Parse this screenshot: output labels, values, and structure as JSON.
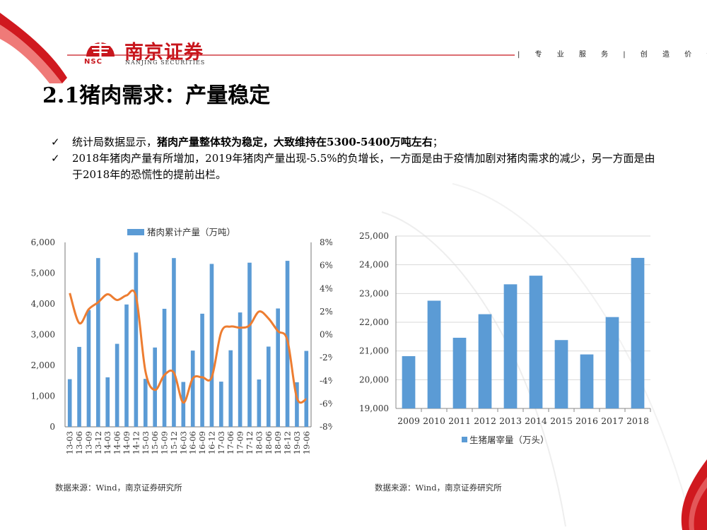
{
  "header": {
    "logo_cn": "南京证券",
    "logo_en": "NANJING SECURITIES",
    "logo_abbr": "NSC",
    "slogan": "| 专 业 服 务 | 创 造 价 值 |",
    "colors": {
      "brand_red": "#c8161d",
      "bar_blue": "#5b9bd5",
      "line_orange": "#ed7d31"
    }
  },
  "title": "2.1猪肉需求：产量稳定",
  "bullets": [
    {
      "icon": "check-icon",
      "pre": "统计局数据显示，",
      "bold": "猪肉产量整体较为稳定，大致维持在5300-5400万吨左右",
      "post": "；"
    },
    {
      "icon": "check-icon",
      "text": "2018年猪肉产量有所增加，2019年猪肉产量出现-5.5%的负增长，一方面是由于疫情加剧对猪肉需求的减少，另一方面是由于2018年的恐慌性的提前出栏。"
    }
  ],
  "sources": {
    "left": "数据来源：Wind，南京证券研究所",
    "right": "数据来源：Wind，南京证券研究所"
  },
  "chart_data": [
    {
      "type": "bar",
      "series": [
        {
          "name": "猪肉累计产量（万吨）",
          "type": "bar",
          "axis": "left",
          "values": [
            1550,
            2600,
            3800,
            5490,
            1610,
            2700,
            3980,
            5670,
            1560,
            2580,
            3840,
            5490,
            1460,
            2480,
            3680,
            5300,
            1470,
            2490,
            3720,
            5340,
            1540,
            2610,
            3850,
            5400,
            1450,
            2470
          ]
        },
        {
          "name": "",
          "type": "line",
          "axis": "right",
          "values": [
            3.6,
            1.0,
            2.2,
            2.8,
            3.5,
            3.0,
            3.4,
            3.3,
            -3.2,
            -4.8,
            -3.5,
            -3.3,
            -5.9,
            -3.8,
            -3.7,
            -3.7,
            0.2,
            0.7,
            0.6,
            0.8,
            2.0,
            1.4,
            0.3,
            -0.5,
            -5.5,
            -5.6
          ]
        }
      ],
      "categories": [
        "13-03",
        "13-06",
        "13-09",
        "13-12",
        "14-03",
        "14-06",
        "14-09",
        "14-12",
        "15-03",
        "15-06",
        "15-09",
        "15-12",
        "16-03",
        "16-06",
        "16-09",
        "16-12",
        "17-03",
        "17-06",
        "17-09",
        "17-12",
        "18-03",
        "18-06",
        "18-09",
        "18-12",
        "19-03",
        "19-06"
      ],
      "ylim": [
        0,
        6000
      ],
      "y_ticks": [
        "0",
        "1,000",
        "2,000",
        "3,000",
        "4,000",
        "5,000",
        "6,000"
      ],
      "y2lim": [
        -8,
        8
      ],
      "y2_ticks": [
        "-8%",
        "-6%",
        "-4%",
        "-2%",
        "0%",
        "2%",
        "4%",
        "6%",
        "8%"
      ],
      "legend": "top"
    },
    {
      "type": "bar",
      "series": [
        {
          "name": "生猪屠宰量（万头）",
          "values": [
            20820,
            22750,
            21460,
            22280,
            23320,
            23620,
            21380,
            20880,
            22180,
            24240
          ]
        }
      ],
      "categories": [
        "2009",
        "2010",
        "2011",
        "2012",
        "2013",
        "2014",
        "2015",
        "2016",
        "2017",
        "2018"
      ],
      "ylim": [
        19000,
        25000
      ],
      "y_ticks": [
        "19,000",
        "20,000",
        "21,000",
        "22,000",
        "23,000",
        "24,000",
        "25,000"
      ],
      "grid": true,
      "legend": "bottom"
    }
  ]
}
